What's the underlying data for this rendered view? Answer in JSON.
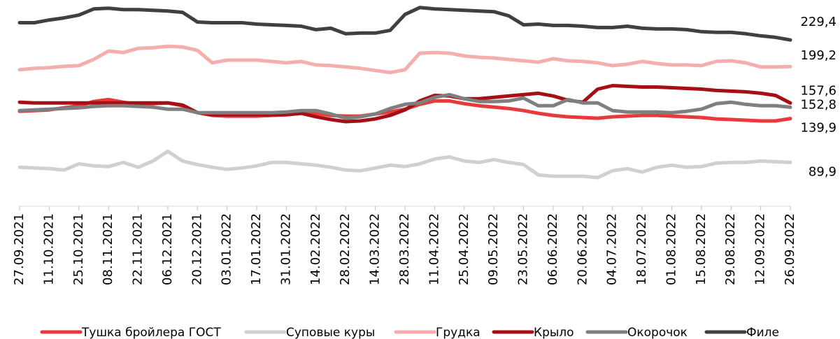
{
  "chart_data": {
    "type": "line",
    "categories": [
      "27.09.2021",
      null,
      "11.10.2021",
      null,
      "25.10.2021",
      null,
      "08.11.2021",
      null,
      "22.11.2021",
      null,
      "06.12.2021",
      null,
      "20.12.2021",
      null,
      "03.01.2022",
      null,
      "17.01.2022",
      null,
      "31.01.2022",
      null,
      "14.02.2022",
      null,
      "28.02.2022",
      null,
      "14.03.2022",
      null,
      "28.03.2022",
      null,
      "11.04.2022",
      null,
      "25.04.2022",
      null,
      "09.05.2022",
      null,
      "23.05.2022",
      null,
      "06.06.2022",
      null,
      "20.06.2022",
      null,
      "04.07.2022",
      null,
      "18.07.2022",
      null,
      "01.08.2022",
      null,
      "15.08.2022",
      null,
      "29.08.2022",
      null,
      "12.09.2022",
      null,
      "26.09.2022"
    ],
    "ylim": [
      40,
      275
    ],
    "series": [
      {
        "name": "Тушка бройлера ГОСТ",
        "color": "#e83a3a",
        "values": [
          148.2,
          149.0,
          149.8,
          152.2,
          154.5,
          159.3,
          161.6,
          158.5,
          156.1,
          156.9,
          157.7,
          154.5,
          146.6,
          143.5,
          142.7,
          142.7,
          142.7,
          143.5,
          144.3,
          145.9,
          145.9,
          143.5,
          142.7,
          142.7,
          145.1,
          147.4,
          150.6,
          156.1,
          160.0,
          160.0,
          156.9,
          154.5,
          152.9,
          151.4,
          149.0,
          145.9,
          143.5,
          141.9,
          141.1,
          140.3,
          141.9,
          142.7,
          143.5,
          143.5,
          142.7,
          141.9,
          141.1,
          139.5,
          138.8,
          138.0,
          137.2,
          137.2,
          139.9
        ],
        "value_labels": [
          null,
          null,
          null,
          null,
          null,
          null,
          null,
          null,
          null,
          null,
          null,
          null,
          null,
          null,
          null,
          null,
          null,
          null,
          null,
          null,
          null,
          null,
          null,
          null,
          null,
          null,
          null,
          null,
          null,
          null,
          null,
          null,
          null,
          null,
          null,
          null,
          null,
          null,
          null,
          null,
          null,
          null,
          null,
          null,
          null,
          null,
          null,
          null,
          null,
          null,
          null,
          null,
          "139,9"
        ]
      },
      {
        "name": "Суповые куры",
        "color": "#d0d0d0",
        "values": [
          84.4,
          83.6,
          82.8,
          81.2,
          88.3,
          86.0,
          85.2,
          89.9,
          84.4,
          91.5,
          102.5,
          91.5,
          87.5,
          84.4,
          82.0,
          83.6,
          86.0,
          89.9,
          89.9,
          88.3,
          86.8,
          84.4,
          81.2,
          80.4,
          83.6,
          86.8,
          85.2,
          88.3,
          93.8,
          96.2,
          91.5,
          89.9,
          93.1,
          89.9,
          87.5,
          75.7,
          74.2,
          74.2,
          74.2,
          72.6,
          80.4,
          82.8,
          78.9,
          84.4,
          86.8,
          84.4,
          85.2,
          89.1,
          89.9,
          89.9,
          91.5,
          90.7,
          89.9
        ],
        "value_labels": [
          null,
          null,
          null,
          null,
          null,
          null,
          null,
          null,
          null,
          null,
          null,
          null,
          null,
          null,
          null,
          null,
          null,
          null,
          null,
          null,
          null,
          null,
          null,
          null,
          null,
          null,
          null,
          null,
          null,
          null,
          null,
          null,
          null,
          null,
          null,
          null,
          null,
          null,
          null,
          null,
          null,
          null,
          null,
          null,
          null,
          null,
          null,
          null,
          null,
          null,
          null,
          null,
          "89,9"
        ]
      },
      {
        "name": "Грудка",
        "color": "#f4aeae",
        "values": [
          195.5,
          197.1,
          197.9,
          199.4,
          200.2,
          207.3,
          216.8,
          215.2,
          219.9,
          220.7,
          222.3,
          221.5,
          217.6,
          203.4,
          206.5,
          206.5,
          206.5,
          205.0,
          203.4,
          205.0,
          201.0,
          200.2,
          198.7,
          197.1,
          194.7,
          192.3,
          195.5,
          214.4,
          215.2,
          214.4,
          211.3,
          209.7,
          208.9,
          207.3,
          205.7,
          204.2,
          208.1,
          205.7,
          205.0,
          203.4,
          200.2,
          201.8,
          205.0,
          202.6,
          201.0,
          201.0,
          200.2,
          205.0,
          205.7,
          203.4,
          198.7,
          198.7,
          199.2
        ],
        "value_labels": [
          null,
          null,
          null,
          null,
          null,
          null,
          null,
          null,
          null,
          null,
          null,
          null,
          null,
          null,
          null,
          null,
          null,
          null,
          null,
          null,
          null,
          null,
          null,
          null,
          null,
          null,
          null,
          null,
          null,
          null,
          null,
          null,
          null,
          null,
          null,
          null,
          null,
          null,
          null,
          null,
          null,
          null,
          null,
          null,
          null,
          null,
          null,
          null,
          null,
          null,
          null,
          null,
          "199,2"
        ]
      },
      {
        "name": "Крыло",
        "color": "#a50f15",
        "values": [
          158.5,
          157.7,
          157.7,
          157.7,
          157.7,
          157.7,
          157.7,
          157.7,
          157.7,
          157.7,
          157.7,
          155.3,
          146.6,
          144.3,
          144.3,
          144.3,
          144.3,
          144.3,
          144.3,
          145.9,
          141.9,
          138.8,
          136.4,
          137.2,
          139.5,
          143.5,
          149.8,
          160.0,
          166.3,
          165.6,
          162.4,
          162.4,
          164.0,
          165.6,
          167.1,
          168.7,
          165.6,
          160.8,
          158.5,
          173.4,
          177.4,
          176.6,
          175.8,
          175.8,
          175.0,
          174.2,
          173.4,
          171.9,
          171.1,
          170.3,
          168.7,
          166.3,
          157.6
        ],
        "value_labels": [
          null,
          null,
          null,
          null,
          null,
          null,
          null,
          null,
          null,
          null,
          null,
          null,
          null,
          null,
          null,
          null,
          null,
          null,
          null,
          null,
          null,
          null,
          null,
          null,
          null,
          null,
          null,
          null,
          null,
          null,
          null,
          null,
          null,
          null,
          null,
          null,
          null,
          null,
          null,
          null,
          null,
          null,
          null,
          null,
          null,
          null,
          null,
          null,
          null,
          null,
          null,
          null,
          "157,6"
        ]
      },
      {
        "name": "Окорочок",
        "color": "#7f7f7f",
        "values": [
          149.0,
          149.8,
          150.6,
          151.4,
          152.2,
          153.7,
          154.5,
          154.5,
          153.7,
          152.9,
          150.6,
          150.6,
          146.6,
          146.6,
          146.6,
          146.6,
          146.6,
          146.6,
          147.4,
          149.0,
          149.0,
          145.1,
          140.3,
          141.9,
          145.1,
          151.4,
          156.1,
          157.7,
          164.0,
          167.1,
          162.4,
          159.3,
          159.3,
          160.0,
          163.2,
          154.5,
          154.5,
          161.6,
          157.7,
          157.7,
          149.0,
          147.4,
          147.4,
          147.4,
          146.6,
          148.2,
          150.6,
          156.9,
          158.5,
          156.1,
          154.5,
          154.5,
          152.8
        ],
        "value_labels": [
          null,
          null,
          null,
          null,
          null,
          null,
          null,
          null,
          null,
          null,
          null,
          null,
          null,
          null,
          null,
          null,
          null,
          null,
          null,
          null,
          null,
          null,
          null,
          null,
          null,
          null,
          null,
          null,
          null,
          null,
          null,
          null,
          null,
          null,
          null,
          null,
          null,
          null,
          null,
          null,
          null,
          null,
          null,
          null,
          null,
          null,
          null,
          null,
          null,
          null,
          null,
          null,
          "152,8"
        ]
      },
      {
        "name": "Филе",
        "color": "#404040",
        "values": [
          249.1,
          249.1,
          252.2,
          254.6,
          257.8,
          264.8,
          265.6,
          264.1,
          264.1,
          263.3,
          262.5,
          260.9,
          249.9,
          249.1,
          249.1,
          249.1,
          247.5,
          246.7,
          246.0,
          245.1,
          241.2,
          242.8,
          236.5,
          237.3,
          237.3,
          240.4,
          258.5,
          266.4,
          264.8,
          264.1,
          263.3,
          262.5,
          261.7,
          257.0,
          246.7,
          247.5,
          246.0,
          246.0,
          245.1,
          243.6,
          243.6,
          245.1,
          242.8,
          242.0,
          242.0,
          241.2,
          238.9,
          238.1,
          238.1,
          236.5,
          234.1,
          232.5,
          229.4
        ],
        "value_labels": [
          null,
          null,
          null,
          null,
          null,
          null,
          null,
          null,
          null,
          null,
          null,
          null,
          null,
          null,
          null,
          null,
          null,
          null,
          null,
          null,
          null,
          null,
          null,
          null,
          null,
          null,
          null,
          null,
          null,
          null,
          null,
          null,
          null,
          null,
          null,
          null,
          null,
          null,
          null,
          null,
          null,
          null,
          null,
          null,
          null,
          null,
          null,
          null,
          null,
          null,
          null,
          null,
          "229,4"
        ]
      }
    ]
  }
}
